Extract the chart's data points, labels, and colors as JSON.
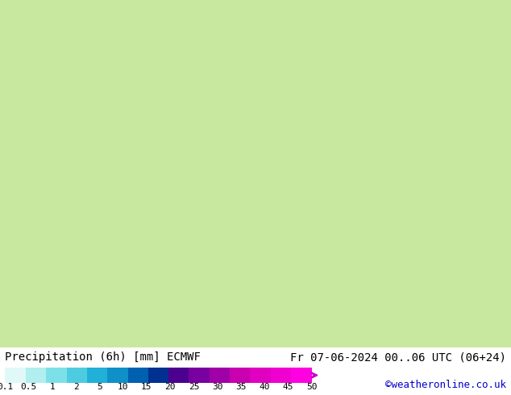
{
  "title_left": "Precipitation (6h) [mm] ECMWF",
  "title_right": "Fr 07-06-2024 00..06 UTC (06+24)",
  "credit": "©weatheronline.co.uk",
  "colorbar_values": [
    0.1,
    0.5,
    1,
    2,
    5,
    10,
    15,
    20,
    25,
    30,
    35,
    40,
    45,
    50
  ],
  "colorbar_colors": [
    "#e0f8f8",
    "#b0eef0",
    "#7de0e8",
    "#4dcce0",
    "#20b0d8",
    "#1090c8",
    "#0060b0",
    "#003090",
    "#4b0090",
    "#7800a0",
    "#a000a8",
    "#c800b0",
    "#e000c0",
    "#f000d0",
    "#ff00e0"
  ],
  "bg_color": "#ffffff",
  "map_bg_top": "#d0f0b0",
  "text_color": "#000000",
  "credit_color": "#0000cc",
  "title_fontsize": 10,
  "credit_fontsize": 9,
  "label_fontsize": 8
}
